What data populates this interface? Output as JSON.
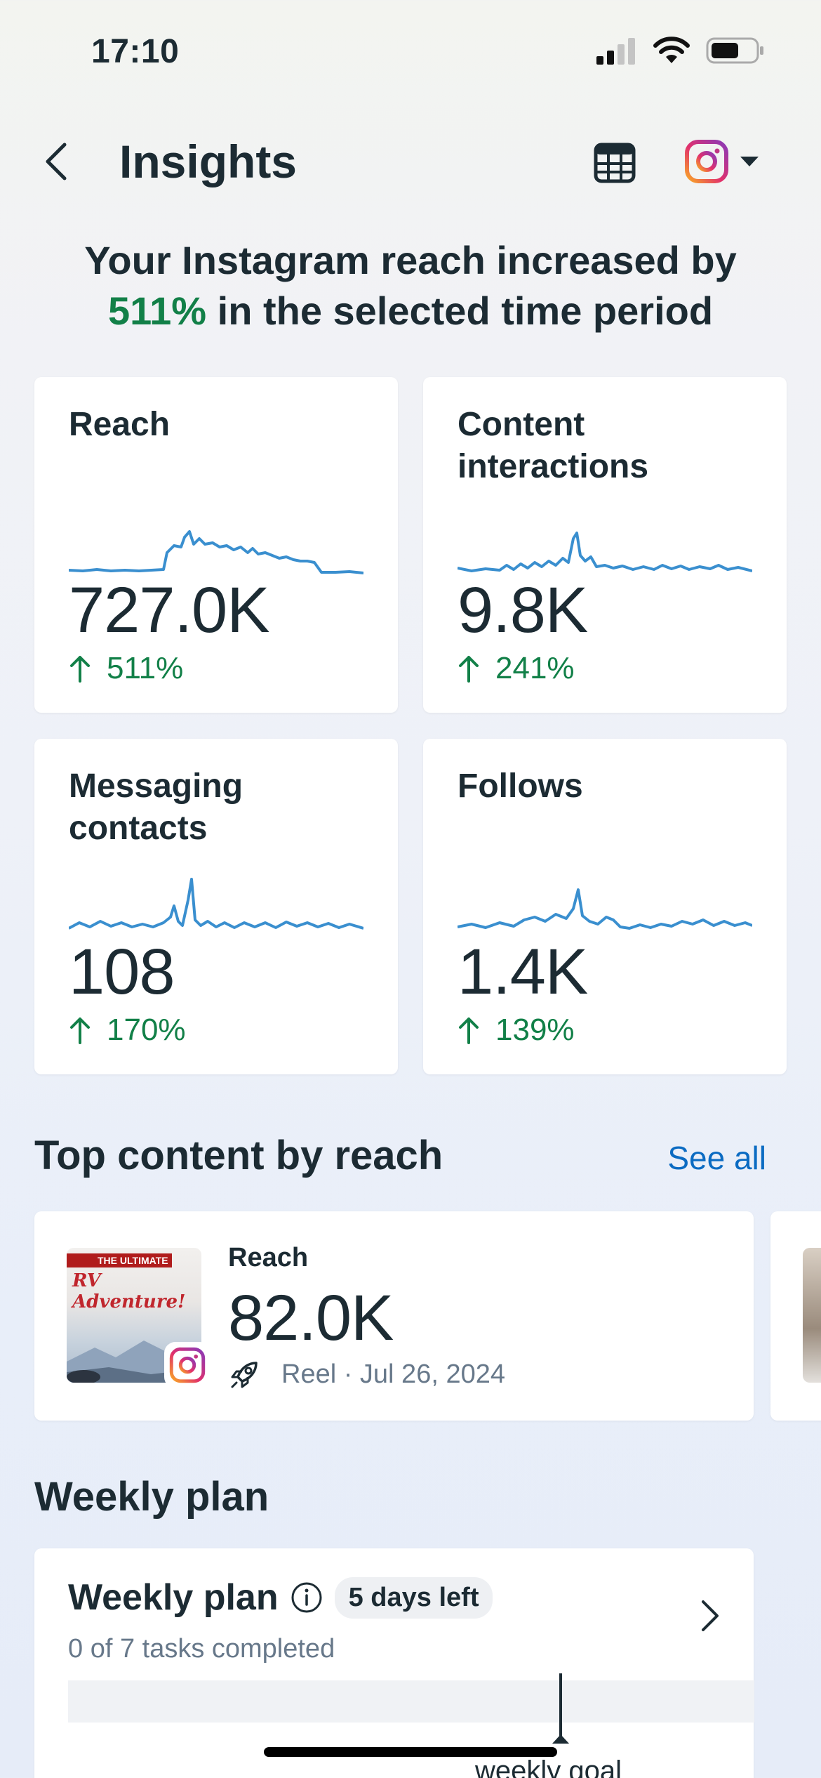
{
  "status_bar": {
    "time": "17:10",
    "icons": [
      "cellular-signal-icon",
      "wifi-icon",
      "battery-icon"
    ]
  },
  "header": {
    "title": "Insights",
    "back_icon": "chevron-left-icon",
    "calendar_icon": "calendar-icon",
    "account_icon": "instagram-icon",
    "dropdown_icon": "caret-down-icon"
  },
  "headline": {
    "prefix": "Your Instagram reach increased by",
    "percent": "511%",
    "suffix": "in the selected time period"
  },
  "metrics": [
    {
      "label": "Reach",
      "value": "727.0K",
      "change": "511%"
    },
    {
      "label": "Content interactions",
      "value": "9.8K",
      "change": "241%"
    },
    {
      "label": "Messaging contacts",
      "value": "108",
      "change": "170%"
    },
    {
      "label": "Follows",
      "value": "1.4K",
      "change": "139%"
    }
  ],
  "top_content": {
    "title": "Top content by reach",
    "see_all": "See all",
    "item": {
      "thumb_banner": "THE ULTIMATE",
      "thumb_title": "RV Adventure!",
      "label": "Reach",
      "value": "82.0K",
      "meta": "Reel · Jul 26, 2024",
      "boost_icon": "rocket-icon"
    }
  },
  "weekly_plan": {
    "section_title": "Weekly plan",
    "card_title": "Weekly plan",
    "days_left": "5 days left",
    "tasks": "0 of 7 tasks completed",
    "goal_label": "weekly goal",
    "progress": 0
  },
  "colors": {
    "positive": "#128048",
    "link": "#0b6bc2",
    "sparkline": "#3a8fcf",
    "text": "#1c2b33"
  }
}
